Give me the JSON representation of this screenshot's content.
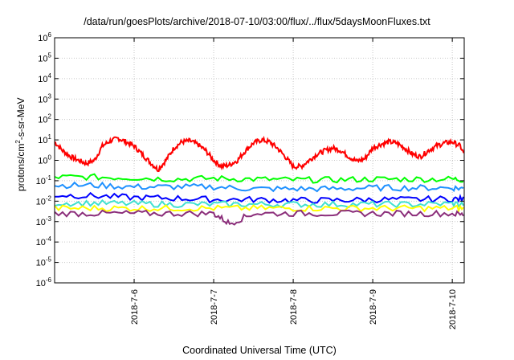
{
  "chart_data": {
    "type": "line",
    "title": "/data/run/goesPlots/archive/2018-07-10/03:00/flux/../flux/5daysMoonFluxes.txt",
    "xlabel": "Coordinated Universal Time (UTC)",
    "ylabel_parts": {
      "before": "protons/cm",
      "sup": "2",
      "after": "-s-sr-MeV"
    },
    "y_scale": "log",
    "ylim": [
      1e-06,
      1000000.0
    ],
    "y_ticks": [
      {
        "value": 1e-06,
        "base": "10",
        "exp": "-6"
      },
      {
        "value": 1e-05,
        "base": "10",
        "exp": "-5"
      },
      {
        "value": 0.0001,
        "base": "10",
        "exp": "-4"
      },
      {
        "value": 0.001,
        "base": "10",
        "exp": "-3"
      },
      {
        "value": 0.01,
        "base": "10",
        "exp": "-2"
      },
      {
        "value": 0.1,
        "base": "10",
        "exp": "-1"
      },
      {
        "value": 1,
        "base": "10",
        "exp": "0"
      },
      {
        "value": 10,
        "base": "10",
        "exp": "1"
      },
      {
        "value": 100,
        "base": "10",
        "exp": "2"
      },
      {
        "value": 1000,
        "base": "10",
        "exp": "3"
      },
      {
        "value": 10000,
        "base": "10",
        "exp": "4"
      },
      {
        "value": 100000,
        "base": "10",
        "exp": "5"
      },
      {
        "value": 1000000,
        "base": "10",
        "exp": "6"
      }
    ],
    "x_ticks": [
      "2018-7-6",
      "2018-7-7",
      "2018-7-8",
      "2018-7-9",
      "2018-7-10"
    ],
    "xlim": [
      "2018-07-05T03:00",
      "2018-07-10T03:00"
    ],
    "grid": true,
    "series": [
      {
        "color": "#ff0000",
        "x": [
          5.0,
          5.1,
          5.2,
          5.3,
          5.4,
          5.5,
          5.6,
          5.7,
          5.8,
          5.9,
          6.0,
          6.1,
          6.2,
          6.3,
          6.4,
          6.5,
          6.6,
          6.7,
          6.8,
          6.9,
          7.0,
          7.1,
          7.2,
          7.3,
          7.4,
          7.5,
          7.6,
          7.7,
          7.8,
          7.9,
          8.0,
          8.1,
          8.2,
          8.3,
          8.4,
          8.5,
          8.6,
          8.7,
          8.8,
          8.9,
          9.0,
          9.1,
          9.2,
          9.3,
          9.4,
          9.5,
          9.6,
          9.7,
          9.8,
          9.9,
          10.0,
          10.1,
          10.2
        ],
        "y": [
          8,
          3,
          1.5,
          1,
          0.7,
          1,
          5,
          9,
          12,
          8,
          5,
          2,
          0.8,
          0.35,
          1,
          4,
          8,
          9,
          6,
          3,
          1,
          0.5,
          0.6,
          1,
          3,
          7,
          10,
          8,
          4,
          1.5,
          0.5,
          0.5,
          1,
          2,
          3,
          4,
          3,
          1.5,
          0.9,
          1.2,
          4,
          6,
          8,
          7,
          4,
          2,
          1.5,
          3,
          5,
          7,
          8,
          5,
          0.8
        ]
      },
      {
        "color": "#00ff00",
        "x": [
          5.0,
          5.5,
          6.0,
          6.5,
          7.0,
          7.5,
          8.0,
          8.5,
          9.0,
          9.5,
          10.0,
          10.2
        ],
        "y": [
          0.15,
          0.15,
          0.14,
          0.12,
          0.13,
          0.12,
          0.11,
          0.11,
          0.12,
          0.12,
          0.12,
          0.11
        ]
      },
      {
        "color": "#1e90ff",
        "x": [
          5.0,
          5.5,
          6.0,
          6.5,
          7.0,
          7.5,
          8.0,
          8.5,
          9.0,
          9.5,
          10.0,
          10.2
        ],
        "y": [
          0.06,
          0.06,
          0.05,
          0.05,
          0.05,
          0.04,
          0.04,
          0.04,
          0.045,
          0.045,
          0.045,
          0.04
        ]
      },
      {
        "color": "#0000ff",
        "x": [
          5.0,
          5.5,
          6.0,
          6.5,
          7.0,
          7.5,
          8.0,
          8.5,
          9.0,
          9.5,
          10.0,
          10.2
        ],
        "y": [
          0.02,
          0.018,
          0.015,
          0.014,
          0.012,
          0.012,
          0.011,
          0.011,
          0.012,
          0.012,
          0.013,
          0.012
        ]
      },
      {
        "color": "#40e0d0",
        "x": [
          5.0,
          5.5,
          6.0,
          6.5,
          7.0,
          7.5,
          8.0,
          8.5,
          9.0,
          9.5,
          10.0,
          10.2
        ],
        "y": [
          0.008,
          0.008,
          0.0075,
          0.007,
          0.007,
          0.007,
          0.007,
          0.007,
          0.007,
          0.007,
          0.0075,
          0.007
        ]
      },
      {
        "color": "#ffff00",
        "x": [
          5.0,
          5.5,
          6.0,
          6.5,
          7.0,
          7.5,
          8.0,
          8.5,
          9.0,
          9.5,
          10.0,
          10.2
        ],
        "y": [
          0.0045,
          0.0045,
          0.0045,
          0.0045,
          0.0045,
          0.0045,
          0.0045,
          0.0045,
          0.0045,
          0.0045,
          0.0045,
          0.0045
        ]
      },
      {
        "color": "#8b2e7a",
        "x": [
          5.0,
          5.5,
          6.0,
          6.5,
          7.0,
          7.2,
          7.5,
          8.0,
          8.5,
          9.0,
          9.5,
          10.0,
          10.2
        ],
        "y": [
          0.0025,
          0.0025,
          0.0025,
          0.0025,
          0.0025,
          0.0008,
          0.0025,
          0.0025,
          0.0025,
          0.0025,
          0.0025,
          0.0025,
          0.002
        ]
      }
    ]
  }
}
